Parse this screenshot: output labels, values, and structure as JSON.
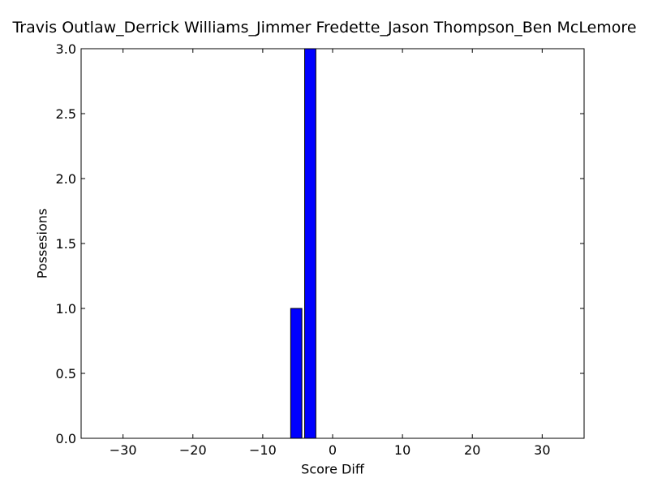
{
  "chart_data": {
    "type": "bar",
    "title": "Travis Outlaw_Derrick Williams_Jimmer Fredette_Jason Thompson_Ben McLemore",
    "xlabel": "Score Diff",
    "ylabel": "Possesions",
    "xlim": [
      -36,
      36
    ],
    "ylim": [
      0,
      3.0
    ],
    "bin_width": 2,
    "bar_color": "#0000ff",
    "edge_color": "#000000",
    "bar_left_edges": [
      -36,
      -34,
      -32,
      -30,
      -28,
      -26,
      -24,
      -22,
      -20,
      -18,
      -16,
      -14,
      -12,
      -10,
      -8,
      -6,
      -4,
      -2,
      0,
      2,
      4,
      6,
      8,
      10,
      12,
      14,
      16,
      18,
      20,
      22,
      24,
      26,
      28,
      30,
      32,
      34
    ],
    "values": [
      0,
      0,
      0,
      0,
      0,
      0,
      0,
      0,
      0,
      0,
      0,
      0,
      0,
      0,
      0,
      1,
      3,
      0,
      0,
      0,
      0,
      0,
      0,
      0,
      0,
      0,
      0,
      0,
      0,
      0,
      0,
      0,
      0,
      0,
      0,
      0
    ],
    "xticks": [
      -30,
      -20,
      -10,
      0,
      10,
      20,
      30
    ],
    "xtick_labels": [
      "−30",
      "−20",
      "−10",
      "0",
      "10",
      "20",
      "30"
    ],
    "yticks": [
      0,
      0.5,
      1.0,
      1.5,
      2.0,
      2.5,
      3.0
    ],
    "ytick_labels": [
      "0.0",
      "0.5",
      "1.0",
      "1.5",
      "2.0",
      "2.5",
      "3.0"
    ],
    "grid": false,
    "legend": false
  }
}
